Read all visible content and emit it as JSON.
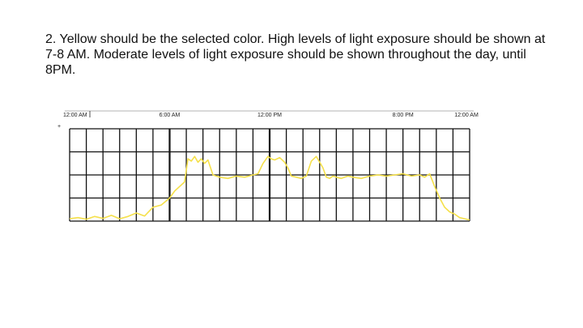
{
  "slide": {
    "instruction_text": "2. Yellow should be the selected color. High levels of light exposure should be shown at 7-8 AM. Moderate levels of light exposure should be shown throughout the day, until 8PM."
  },
  "chart_data": {
    "type": "line",
    "title": "",
    "xlabel": "",
    "ylabel": "",
    "x_unit": "hours from 12:00 AM",
    "xlim": [
      0,
      24
    ],
    "ylim": [
      0,
      4
    ],
    "grid": true,
    "tick_labels": [
      {
        "text": "12:00 AM",
        "x": 0
      },
      {
        "text": "6:00 AM",
        "x": 6
      },
      {
        "text": "12:00 PM",
        "x": 12
      },
      {
        "text": "8:00 PM",
        "x": 20
      },
      {
        "text": "12:00 AM",
        "x": 24
      }
    ],
    "marker": "+",
    "series": [
      {
        "color": "#f5e04a",
        "x": [
          0,
          0.5,
          1,
          1.5,
          2,
          2.5,
          3,
          3.5,
          4,
          4.5,
          5,
          5.5,
          6,
          6.3,
          6.6,
          6.9,
          7.1,
          7.3,
          7.5,
          7.7,
          7.9,
          8.1,
          8.3,
          8.6,
          9,
          9.5,
          10,
          10.5,
          11,
          11.3,
          11.6,
          11.9,
          12.1,
          12.3,
          12.6,
          12.9,
          13.1,
          13.3,
          13.6,
          13.9,
          14.2,
          14.5,
          14.8,
          15,
          15.2,
          15.4,
          15.6,
          15.8,
          16,
          16.3,
          16.7,
          17,
          17.5,
          18,
          18.5,
          19,
          19.5,
          20,
          20.5,
          21,
          21.3,
          21.6,
          21.9,
          22.2,
          22.5,
          22.8,
          23.1,
          23.4,
          23.7,
          24
        ],
        "y": [
          0.1,
          0.15,
          0.08,
          0.2,
          0.12,
          0.25,
          0.1,
          0.2,
          0.35,
          0.22,
          0.6,
          0.7,
          1.0,
          1.3,
          1.5,
          1.7,
          2.7,
          2.6,
          2.8,
          2.55,
          2.7,
          2.5,
          2.65,
          2.0,
          1.9,
          1.85,
          1.95,
          1.9,
          2.0,
          2.05,
          2.5,
          2.8,
          2.7,
          2.65,
          2.75,
          2.55,
          2.3,
          1.95,
          1.9,
          1.85,
          1.95,
          2.6,
          2.8,
          2.55,
          2.3,
          1.9,
          1.85,
          1.95,
          1.9,
          1.85,
          1.95,
          1.9,
          1.85,
          1.95,
          2.0,
          1.95,
          2.0,
          2.05,
          1.95,
          2.0,
          1.9,
          2.05,
          1.5,
          1.0,
          0.6,
          0.4,
          0.3,
          0.15,
          0.1,
          0.05
        ]
      }
    ]
  }
}
